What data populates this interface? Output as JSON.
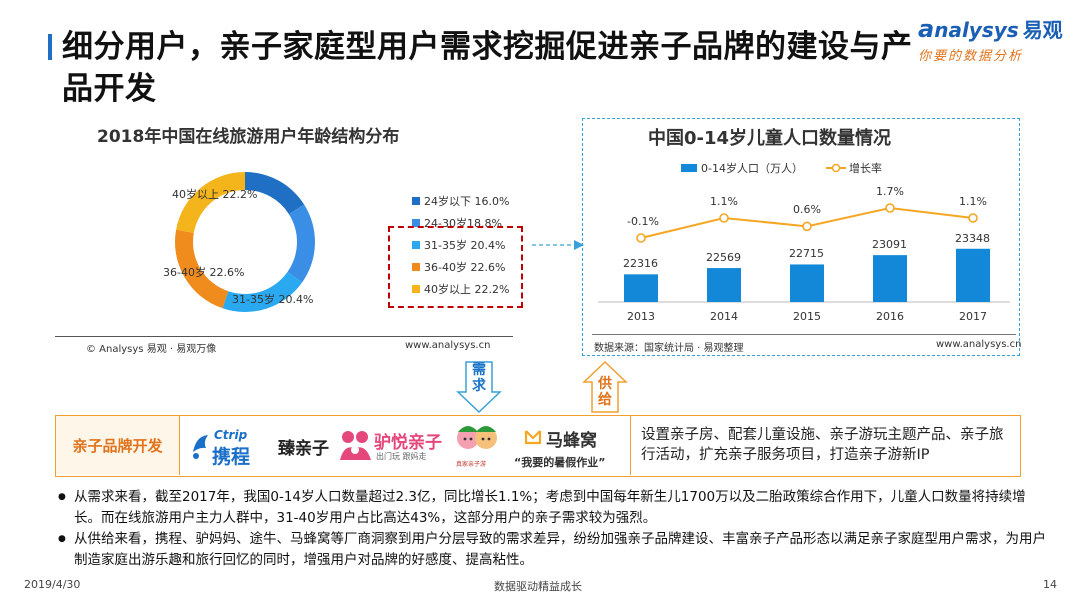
{
  "header": {
    "title": "细分用户，亲子家庭型用户需求挖掘促进亲子品牌的建设与产品开发",
    "logo_text": "nalysys",
    "logo_cn": "易观",
    "logo_tagline": "你要的数据分析"
  },
  "left_chart": {
    "title": "2018年中国在线旅游用户年龄结构分布",
    "source": "© Analysys 易观 · 易观万像",
    "site": "www.analysys.cn",
    "slice_labels": [
      "40岁以上 22.2%",
      "36-40岁 22.6%",
      "31-35岁 20.4%"
    ]
  },
  "right_chart": {
    "title": "中国0-14岁儿童人口数量情况",
    "source": "数据来源：国家统计局 · 易观整理",
    "site": "www.analysys.cn"
  },
  "arrows": {
    "demand": "需求",
    "supply": "供给"
  },
  "brand_band": {
    "label": "亲子品牌开发",
    "logos": {
      "ctrip_en": "Ctrip",
      "ctrip_cn": "携程",
      "zhen": "臻亲子",
      "lvyue": "驴悦亲子",
      "lvyue_sub": "出门玩  跟妈走",
      "tuniu_sub": "真家亲子游",
      "mafengwo": "马蜂窝",
      "mafengwo_slogan": "“我要的暑假作业”"
    },
    "desc": "设置亲子房、配套儿童设施、亲子游玩主题产品、亲子旅行活动，扩充亲子服务项目，打造亲子游新IP"
  },
  "bullets": [
    "从需求来看，截至2017年，我国0-14岁人口数量超过2.3亿，同比增长1.1%；考虑到中国每年新生儿1700万以及二胎政策综合作用下，儿童人口数量将持续增长。而在线旅游用户主力人群中，31-40岁用户占比高达43%，这部分用户的亲子需求较为强烈。",
    "从供给来看，携程、驴妈妈、途牛、马蜂窝等厂商洞察到用户分层导致的需求差异，纷纷加强亲子品牌建设、丰富亲子产品形态以满足亲子家庭型用户需求，为用户制造家庭出游乐趣和旅行回忆的同时，增强用户对品牌的好感度、提高粘性。"
  ],
  "footer": {
    "date": "2019/4/30",
    "slogan": "数据驱动精益成长",
    "page": "14"
  },
  "chart_data": [
    {
      "type": "pie",
      "title": "2018年中国在线旅游用户年龄结构分布",
      "categories": [
        "24岁以下",
        "24-30岁",
        "31-35岁",
        "36-40岁",
        "40岁以上"
      ],
      "values": [
        16.0,
        18.8,
        20.4,
        22.6,
        22.2
      ],
      "legend_labels": [
        "24岁以下 16.0%",
        "24-30岁18.8%",
        "31-35岁 20.4%",
        "36-40岁 22.6%",
        "40岁以上 22.2%"
      ],
      "colors": [
        "#1f6fc5",
        "#3a8ee6",
        "#2aa8f0",
        "#f08c1e",
        "#f4b41c"
      ],
      "legend": "right"
    },
    {
      "type": "bar",
      "title": "中国0-14岁儿童人口数量情况",
      "categories": [
        "2013",
        "2014",
        "2015",
        "2016",
        "2017"
      ],
      "series": [
        {
          "name": "0-14岁人口（万人）",
          "values": [
            22316,
            22569,
            22715,
            23091,
            23348
          ],
          "labels": [
            "22316",
            "22569",
            "22715",
            "23091",
            "23348"
          ],
          "color": "#1488d8"
        },
        {
          "name": "增长率",
          "values": [
            -0.1,
            1.1,
            0.6,
            1.7,
            1.1
          ],
          "labels": [
            "-0.1%",
            "1.1%",
            "0.6%",
            "1.7%",
            "1.1%"
          ],
          "color": "#f5a623"
        }
      ],
      "legend": "top"
    }
  ]
}
